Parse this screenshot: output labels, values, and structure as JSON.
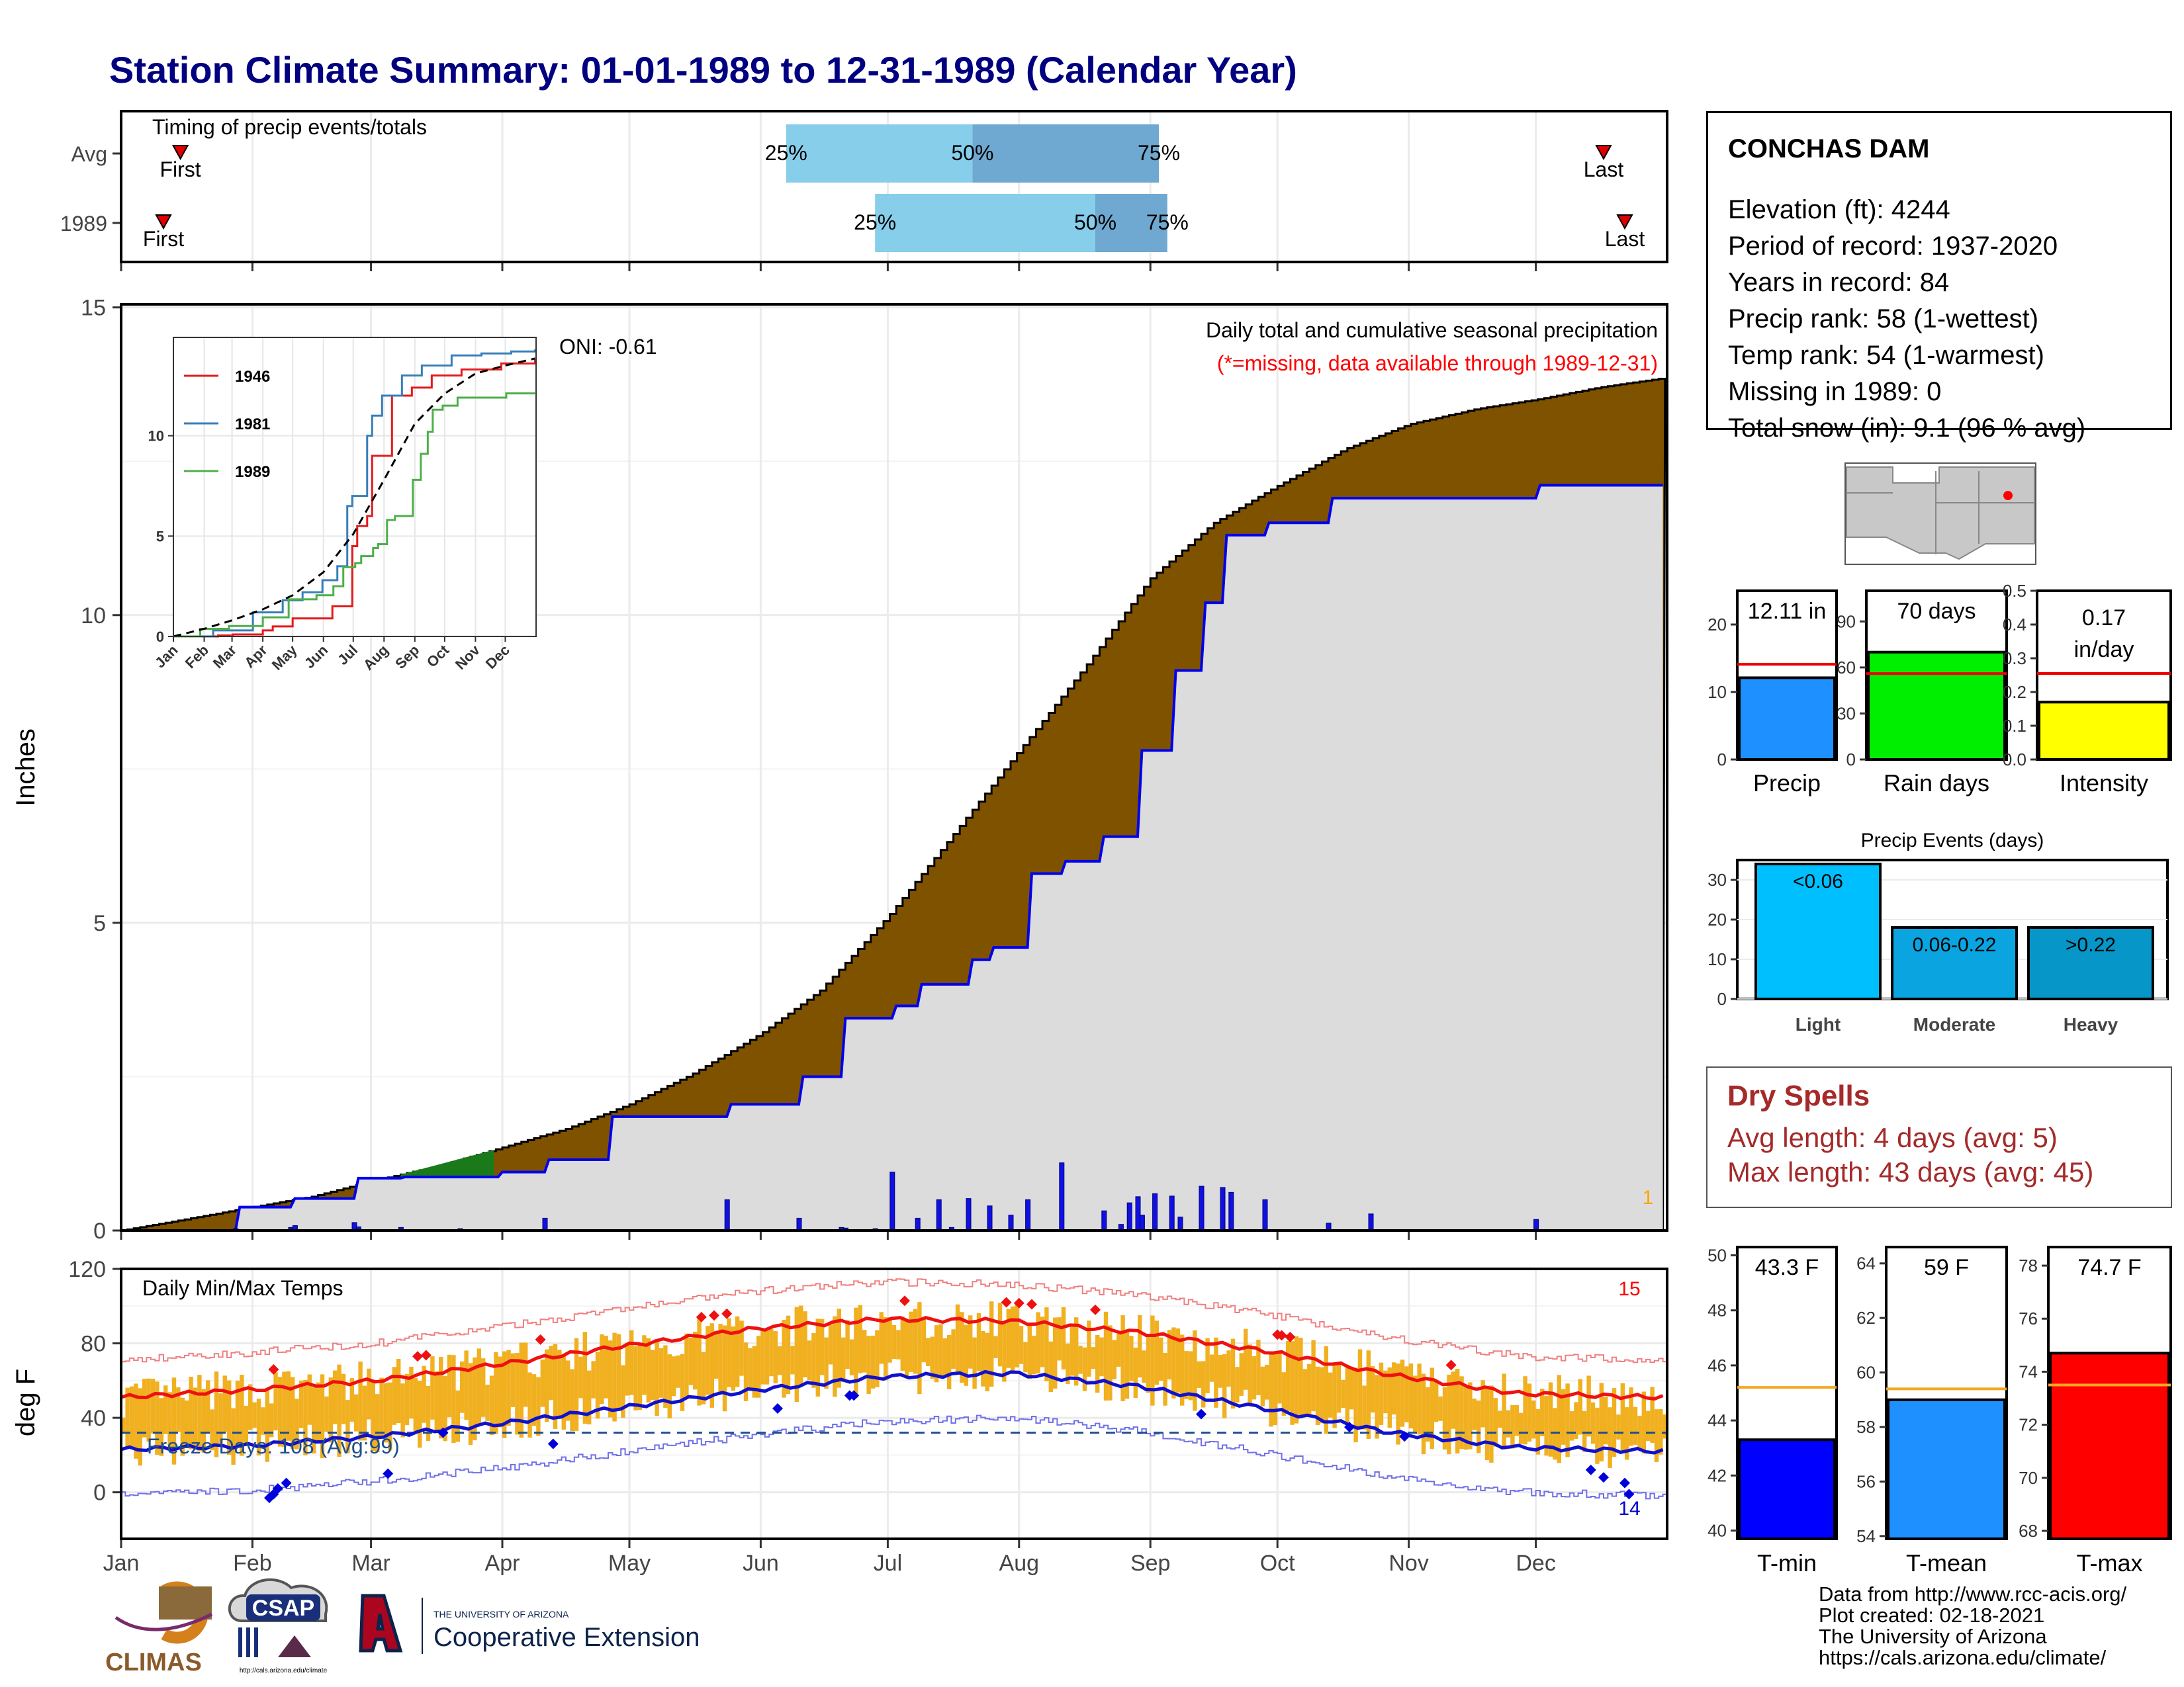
{
  "title": "Station Climate Summary: 01-01-1989 to 12-31-1989 (Calendar Year)",
  "timing": {
    "heading": "Timing of precip events/totals",
    "rows": [
      {
        "label": "Avg",
        "p25_day": 157,
        "p50_day": 201,
        "p75_day": 245,
        "first_day": 14,
        "last_day": 350,
        "p25_label": "25%",
        "p50_label": "50%",
        "p75_label": "75%",
        "first_label": "First",
        "last_label": "Last"
      },
      {
        "label": "1989",
        "p25_day": 178,
        "p50_day": 230,
        "p75_day": 247,
        "first_day": 10,
        "last_day": 355,
        "p25_label": "25%",
        "p50_label": "50%",
        "p75_label": "75%",
        "first_label": "First",
        "last_label": "Last"
      }
    ]
  },
  "station": {
    "name": "CONCHAS DAM",
    "lines": [
      "Elevation (ft): 4244",
      "Period of record: 1937-2020",
      "Years in record: 84",
      "Precip rank: 58 (1-wettest)",
      "Temp rank: 54 (1-warmest)",
      "Missing in 1989: 0",
      "Total snow (in): 9.1 (96 % avg)"
    ]
  },
  "months": [
    "Jan",
    "Feb",
    "Mar",
    "Apr",
    "May",
    "Jun",
    "Jul",
    "Aug",
    "Sep",
    "Oct",
    "Nov",
    "Dec"
  ],
  "inset_months": [
    "Jan",
    "Feb",
    "Mar",
    "Apr",
    "May",
    "Jun",
    "Jul",
    "Aug",
    "Sep",
    "Oct",
    "Nov",
    "Dec"
  ],
  "colors": {
    "title": "#000080",
    "avg_fill": "#7f5200",
    "obs_fill": "#dcdcdc",
    "obs_line": "#0000ee",
    "above_fill": "#1a7a1a",
    "daily_bar": "#1010e0",
    "temp_bar": "#f0b020",
    "tmax_line": "#ee1111",
    "tmin_line": "#1111cc",
    "p_light": "#00bfff",
    "p_moderate": "#0aa5e0",
    "p_heavy": "#0696c8",
    "dry_text": "#a52a2a",
    "timing_light": "#87ceeb",
    "timing_dark": "#6fa8d0"
  },
  "chart_data": [
    {
      "type": "area",
      "name": "cumulative_precip",
      "ylabel": "Inches",
      "ylim": [
        0,
        15
      ],
      "yticks": [
        0,
        5,
        10,
        15
      ],
      "annotation_title": "Daily total and cumulative seasonal precipitation",
      "annotation_missing": "(*=missing, data available through 1989-12-31)",
      "oni_label": "ONI: -0.61",
      "count_label": "1",
      "avg_cumulative": {
        "days": [
          0,
          15,
          31,
          45,
          59,
          75,
          90,
          105,
          120,
          135,
          151,
          165,
          181,
          196,
          212,
          228,
          243,
          258,
          273,
          289,
          304,
          320,
          334,
          349,
          364
        ],
        "values": [
          0,
          0.18,
          0.38,
          0.55,
          0.8,
          1.05,
          1.35,
          1.65,
          2.05,
          2.55,
          3.2,
          3.9,
          5.1,
          6.4,
          7.8,
          9.2,
          10.6,
          11.5,
          12.1,
          12.7,
          13.1,
          13.35,
          13.5,
          13.7,
          13.85
        ]
      },
      "obs_cumulative": {
        "days": [
          0,
          27,
          28,
          40,
          41,
          55,
          56,
          66,
          67,
          89,
          90,
          100,
          101,
          115,
          116,
          143,
          144,
          160,
          161,
          170,
          171,
          182,
          183,
          188,
          189,
          200,
          201,
          205,
          206,
          214,
          215,
          222,
          223,
          231,
          232,
          240,
          241,
          248,
          249,
          255,
          256,
          260,
          261,
          270,
          271,
          285,
          286,
          334,
          335,
          364
        ],
        "values": [
          0,
          0,
          0.38,
          0.38,
          0.52,
          0.52,
          0.85,
          0.85,
          0.87,
          0.87,
          0.95,
          0.95,
          1.15,
          1.15,
          1.85,
          1.85,
          2.05,
          2.05,
          2.5,
          2.5,
          3.45,
          3.45,
          3.65,
          3.65,
          4.0,
          4.0,
          4.4,
          4.4,
          4.6,
          4.6,
          5.8,
          5.8,
          6.0,
          6.0,
          6.4,
          6.4,
          7.8,
          7.8,
          9.1,
          9.1,
          10.2,
          10.2,
          11.3,
          11.3,
          11.5,
          11.5,
          11.9,
          11.9,
          12.11,
          12.11
        ]
      },
      "daily_precip": {
        "days": [
          27,
          40,
          41,
          55,
          56,
          66,
          80,
          100,
          143,
          160,
          170,
          171,
          178,
          182,
          188,
          193,
          196,
          200,
          205,
          210,
          214,
          222,
          232,
          236,
          238,
          240,
          241,
          244,
          248,
          250,
          255,
          260,
          262,
          270,
          285,
          295,
          334
        ],
        "values": [
          0.03,
          0.05,
          0.08,
          0.13,
          0.06,
          0.05,
          0.03,
          0.2,
          0.5,
          0.2,
          0.05,
          0.04,
          0.03,
          0.95,
          0.2,
          0.5,
          0.05,
          0.52,
          0.4,
          0.25,
          0.5,
          1.1,
          0.32,
          0.1,
          0.45,
          0.55,
          0.25,
          0.6,
          0.56,
          0.22,
          0.72,
          0.7,
          0.62,
          0.5,
          0.12,
          0.27,
          0.18
        ]
      }
    },
    {
      "type": "line",
      "name": "inset_cumulative_years",
      "ylim": [
        0,
        14.5
      ],
      "yticks": [
        0,
        5,
        10
      ],
      "series": [
        {
          "name": "1946",
          "color": "#e41a1c",
          "x": [
            0,
            45,
            60,
            90,
            100,
            120,
            150,
            160,
            170,
            180,
            185,
            195,
            200,
            220,
            240,
            260,
            290,
            330,
            364
          ],
          "y": [
            0,
            0.05,
            0.1,
            0.3,
            0.5,
            0.9,
            0.9,
            1.5,
            1.5,
            4.5,
            5.5,
            6.0,
            9.0,
            12.0,
            12.4,
            13.0,
            13.3,
            13.6,
            13.8
          ]
        },
        {
          "name": "1981",
          "color": "#377eb8",
          "x": [
            0,
            40,
            80,
            110,
            130,
            150,
            165,
            175,
            180,
            195,
            200,
            210,
            230,
            250,
            280,
            310,
            340,
            364
          ],
          "y": [
            0,
            0.3,
            1.2,
            1.8,
            2.2,
            2.8,
            3.5,
            6.5,
            7.0,
            10.0,
            11.0,
            12.0,
            13.0,
            13.5,
            14.0,
            14.1,
            14.2,
            14.3
          ]
        },
        {
          "name": "1989",
          "color": "#4daf4a",
          "x": [
            0,
            27,
            56,
            90,
            116,
            144,
            161,
            171,
            183,
            189,
            201,
            206,
            215,
            223,
            241,
            249,
            256,
            261,
            271,
            286,
            335,
            364
          ],
          "y": [
            0,
            0.38,
            0.52,
            0.95,
            1.85,
            2.05,
            2.5,
            3.45,
            3.65,
            4.0,
            4.4,
            4.6,
            5.8,
            6.0,
            7.8,
            9.1,
            10.2,
            11.3,
            11.5,
            11.9,
            12.11,
            12.11
          ]
        },
        {
          "name": "avg",
          "color": "#000000",
          "x": [
            0,
            31,
            59,
            90,
            120,
            151,
            181,
            212,
            243,
            273,
            304,
            334,
            364
          ],
          "y": [
            0,
            0.38,
            0.8,
            1.35,
            2.05,
            3.2,
            5.1,
            7.8,
            10.6,
            12.1,
            13.1,
            13.5,
            13.85
          ]
        }
      ]
    },
    {
      "type": "line",
      "name": "daily_temps",
      "ylabel": "deg F",
      "ylim": [
        -25,
        120
      ],
      "yticks": [
        0,
        40,
        80,
        120
      ],
      "panel_label": "Daily Min/Max Temps",
      "freeze_label": "Freeze Days: 108 (Avg:99)",
      "freeze_line": 32,
      "max_count_label": "15",
      "min_count_label": "14",
      "normal_tmax": {
        "days": [
          0,
          30,
          60,
          90,
          120,
          150,
          180,
          210,
          240,
          270,
          300,
          330,
          364
        ],
        "values": [
          51,
          55,
          60,
          69,
          79,
          88,
          93,
          92,
          86,
          76,
          63,
          53,
          51
        ]
      },
      "normal_tmin": {
        "days": [
          0,
          30,
          60,
          90,
          120,
          150,
          180,
          210,
          240,
          270,
          300,
          330,
          364
        ],
        "values": [
          23,
          25,
          30,
          37,
          46,
          55,
          62,
          64,
          57,
          45,
          32,
          24,
          22
        ]
      }
    },
    {
      "type": "bar",
      "name": "summary_bars",
      "panels": [
        {
          "label": "Precip",
          "value": 12.11,
          "avg": 14.1,
          "ylim": [
            0,
            25
          ],
          "yticks": [
            0,
            10,
            20
          ],
          "value_label": "12.11 in",
          "color": "#1e90ff"
        },
        {
          "label": "Rain days",
          "value": 70,
          "avg": 56,
          "ylim": [
            0,
            110
          ],
          "yticks": [
            0,
            30,
            60,
            90
          ],
          "value_label": "70 days",
          "color": "#00ee00"
        },
        {
          "label": "Intensity",
          "value": 0.17,
          "avg": 0.255,
          "ylim": [
            0,
            0.5
          ],
          "yticks": [
            0.0,
            0.1,
            0.2,
            0.3,
            0.4,
            0.5
          ],
          "value_label": "0.17",
          "value_label2": "in/day",
          "color": "#ffff00"
        }
      ]
    },
    {
      "type": "bar",
      "name": "precip_events",
      "title": "Precip Events (days)",
      "categories": [
        "Light",
        "Moderate",
        "Heavy"
      ],
      "values": [
        34,
        18,
        18
      ],
      "bar_labels": [
        "<0.06",
        "0.06-0.22",
        ">0.22"
      ],
      "ylim": [
        0,
        35
      ],
      "yticks": [
        0,
        10,
        20,
        30
      ]
    },
    {
      "type": "bar",
      "name": "temp_bars",
      "panels": [
        {
          "label": "T-min",
          "value": 43.3,
          "avg": 45.2,
          "ylim": [
            39.7,
            50.3
          ],
          "yticks": [
            40,
            42,
            44,
            46,
            48,
            50
          ],
          "value_label": "43.3 F",
          "color": "#0000ff"
        },
        {
          "label": "T-mean",
          "value": 59.0,
          "avg": 59.4,
          "ylim": [
            53.9,
            64.6
          ],
          "yticks": [
            54,
            56,
            58,
            60,
            62,
            64
          ],
          "value_label": "59 F",
          "color": "#1e90ff"
        },
        {
          "label": "T-max",
          "value": 74.7,
          "avg": 73.5,
          "ylim": [
            67.7,
            78.7
          ],
          "yticks": [
            68,
            70,
            72,
            74,
            76,
            78
          ],
          "value_label": "74.7 F",
          "color": "#ff0000"
        }
      ]
    }
  ],
  "dry_spells": {
    "title": "Dry Spells",
    "avg_line": "Avg length: 4 days (avg: 5)",
    "max_line": "Max length: 43 days (avg: 45)"
  },
  "logos": {
    "climas": "CLIMAS",
    "csap": "CSAP",
    "csap_url": "http://cals.arizona.edu/climate",
    "ua_line1": "THE UNIVERSITY OF ARIZONA",
    "ua_line2": "Cooperative Extension"
  },
  "footer": [
    "Data from http://www.rcc-acis.org/",
    "Plot created: 02-18-2021",
    "The University of Arizona",
    "https://cals.arizona.edu/climate/"
  ]
}
